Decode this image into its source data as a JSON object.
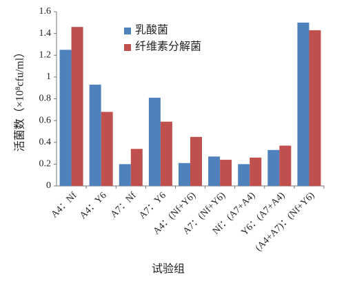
{
  "chart_data": {
    "type": "bar",
    "x_label": "试验组",
    "y_label": "活菌数（×10⁸cfu/ml）",
    "categories": [
      "A4：Nf",
      "A4：Y6",
      "A7：Nf",
      "A7：Y6",
      "A4：(Nf+Y6)",
      "A7：(Nf+Y6)",
      "Nf：(A7+A4)",
      "Y6：(A7+A4)",
      "(A4+A7)：(Nf+Y6)"
    ],
    "series": [
      {
        "name": "乳酸菌",
        "color": "#4f81bd",
        "values": [
          1.25,
          0.93,
          0.2,
          0.81,
          0.21,
          0.27,
          0.2,
          0.33,
          1.5
        ]
      },
      {
        "name": "纤维素分解菌",
        "color": "#c0504d",
        "values": [
          1.46,
          0.68,
          0.34,
          0.59,
          0.45,
          0.24,
          0.26,
          0.37,
          1.43
        ]
      }
    ],
    "ylim": [
      0,
      1.6
    ],
    "yticks": [
      0,
      0.2,
      0.4,
      0.6,
      0.8,
      1,
      1.2,
      1.4,
      1.6
    ],
    "grid": false,
    "legend": "top-left"
  }
}
